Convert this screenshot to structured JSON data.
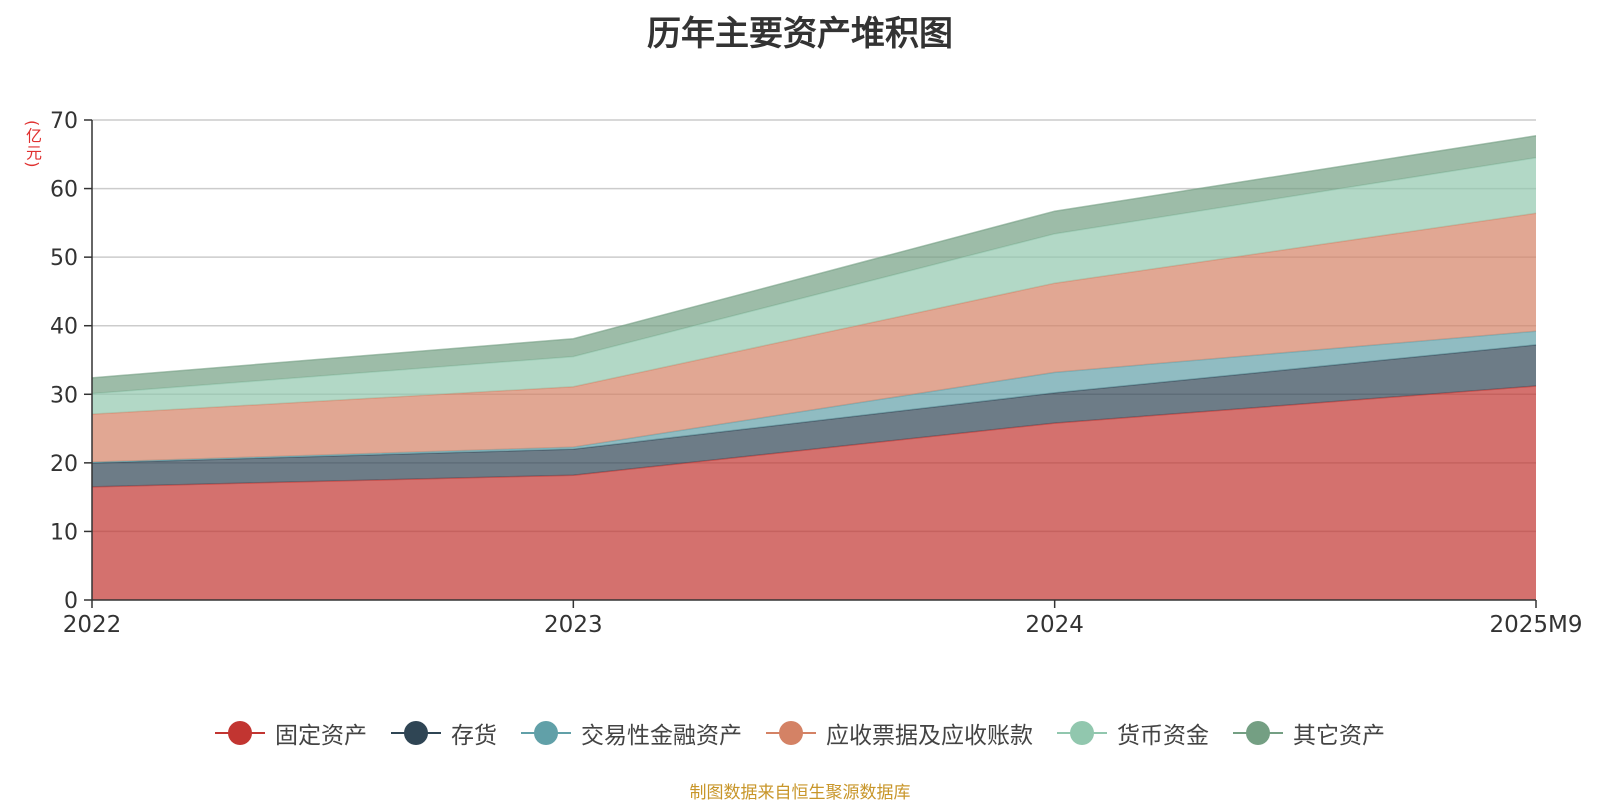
{
  "chart_data": {
    "type": "area",
    "stacked": true,
    "title": "历年主要资产堆积图",
    "ylabel": "(亿元)",
    "xlabel": "",
    "categories": [
      "2022",
      "2023",
      "2024",
      "2025M9"
    ],
    "ylim": [
      0,
      70
    ],
    "yticks": [
      0,
      10,
      20,
      30,
      40,
      50,
      60,
      70
    ],
    "grid": true,
    "legend_position": "bottom",
    "series": [
      {
        "name": "固定资产",
        "values": [
          16.5,
          18.2,
          25.8,
          31.2
        ],
        "color": "#c23531"
      },
      {
        "name": "存货",
        "values": [
          3.5,
          3.8,
          4.4,
          6.0
        ],
        "color": "#2f4554"
      },
      {
        "name": "交易性金融资产",
        "values": [
          0.1,
          0.3,
          3.0,
          2.0
        ],
        "color": "#61a0a8"
      },
      {
        "name": "应收票据及应收账款",
        "values": [
          7.0,
          8.8,
          13.0,
          17.2
        ],
        "color": "#d48265"
      },
      {
        "name": "货币资金",
        "values": [
          3.0,
          4.4,
          7.2,
          8.1
        ],
        "color": "#91c7ae"
      },
      {
        "name": "其它资产",
        "values": [
          2.3,
          2.6,
          3.3,
          3.2
        ],
        "color": "#749f83"
      }
    ]
  },
  "source": "制图数据来自恒生聚源数据库"
}
